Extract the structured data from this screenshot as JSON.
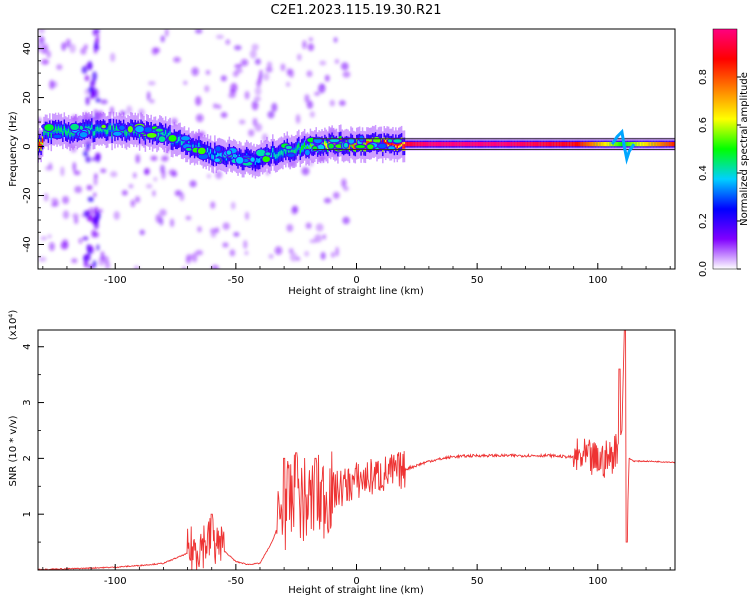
{
  "title": "C2E1.2023.115.19.30.R21",
  "chart_data": [
    {
      "type": "heatmap",
      "xlabel": "Height of straight line (km)",
      "ylabel": "Frequency (Hz)",
      "xlim": [
        -132,
        132
      ],
      "ylim": [
        -50,
        48
      ],
      "xticks": [
        -100,
        -50,
        0,
        50,
        100
      ],
      "yticks": [
        -40,
        -20,
        0,
        20,
        40
      ],
      "colorbar": {
        "label": "Normalized spectral amplitude",
        "range": [
          0,
          1
        ],
        "ticks": [
          0.0,
          0.2,
          0.4,
          0.6,
          0.8
        ],
        "colors": [
          "#ffffff",
          "#8000ff",
          "#0000ff",
          "#00d0ff",
          "#00ff00",
          "#ffff00",
          "#ff8000",
          "#ff0000",
          "#ff0080"
        ]
      },
      "ridge": [
        {
          "x": -130,
          "f": 6,
          "amp": 0.45
        },
        {
          "x": -120,
          "f": 6,
          "amp": 0.45
        },
        {
          "x": -110,
          "f": 6.5,
          "amp": 0.42
        },
        {
          "x": -100,
          "f": 6.5,
          "amp": 0.45
        },
        {
          "x": -90,
          "f": 6,
          "amp": 0.45
        },
        {
          "x": -80,
          "f": 5,
          "amp": 0.42
        },
        {
          "x": -70,
          "f": 1,
          "amp": 0.4
        },
        {
          "x": -60,
          "f": -3,
          "amp": 0.38
        },
        {
          "x": -50,
          "f": -4,
          "amp": 0.38
        },
        {
          "x": -42,
          "f": -6,
          "amp": 0.35
        },
        {
          "x": -35,
          "f": -3,
          "amp": 0.4
        },
        {
          "x": -25,
          "f": -1,
          "amp": 0.45
        },
        {
          "x": -15,
          "f": 1,
          "amp": 0.6
        },
        {
          "x": -5,
          "f": 1,
          "amp": 0.75
        },
        {
          "x": 10,
          "f": 1,
          "amp": 0.85
        },
        {
          "x": 30,
          "f": 1,
          "amp": 1.0
        },
        {
          "x": 60,
          "f": 1,
          "amp": 1.0
        },
        {
          "x": 90,
          "f": 1,
          "amp": 0.9
        },
        {
          "x": 110,
          "f": 1,
          "amp": 0.5
        },
        {
          "x": 132,
          "f": 1,
          "amp": 0.85
        }
      ]
    },
    {
      "type": "line",
      "xlabel": "Height of straight line (km)",
      "ylabel": "SNR (10 * v/v)",
      "yscale_label": "(x10⁴)",
      "xlim": [
        -132,
        132
      ],
      "ylim": [
        0,
        4.3
      ],
      "xticks": [
        -100,
        -50,
        0,
        50,
        100
      ],
      "yticks": [
        1,
        2,
        3,
        4
      ],
      "series": [
        {
          "color": "#ee3333",
          "x": [
            -132,
            -120,
            -100,
            -90,
            -80,
            -70,
            -65,
            -60,
            -55,
            -50,
            -45,
            -40,
            -35,
            -30,
            -25,
            -20,
            -15,
            -10,
            -5,
            0,
            10,
            20,
            30,
            40,
            50,
            60,
            70,
            80,
            90,
            95,
            100,
            105,
            108,
            110,
            111,
            112,
            113,
            115,
            120,
            132
          ],
          "y": [
            0.01,
            0.02,
            0.05,
            0.08,
            0.12,
            0.3,
            0.45,
            0.55,
            0.35,
            0.15,
            0.1,
            0.12,
            0.5,
            1.1,
            1.3,
            1.2,
            1.3,
            1.4,
            1.5,
            1.6,
            1.7,
            1.8,
            1.95,
            2.03,
            2.05,
            2.05,
            2.05,
            2.05,
            2.02,
            2.0,
            1.95,
            2.0,
            2.2,
            2.5,
            4.3,
            0.5,
            2.0,
            1.95,
            1.95,
            1.93
          ]
        }
      ],
      "bands": [
        {
          "x0": -70,
          "x1": -55,
          "amp": 0.45
        },
        {
          "x0": -33,
          "x1": -10,
          "amp": 0.8
        },
        {
          "x0": -10,
          "x1": 20,
          "amp": 0.35
        },
        {
          "x0": 90,
          "x1": 108,
          "amp": 0.35
        }
      ],
      "peaks": [
        {
          "x": -60,
          "y": 1.0
        },
        {
          "x": -30,
          "y": 2.0
        },
        {
          "x": -25,
          "y": 2.1
        },
        {
          "x": -17,
          "y": 2.0
        },
        {
          "x": 109,
          "y": 3.6
        },
        {
          "x": 111.5,
          "y": 4.3
        },
        {
          "x": 112,
          "y": 0.5
        }
      ]
    }
  ]
}
